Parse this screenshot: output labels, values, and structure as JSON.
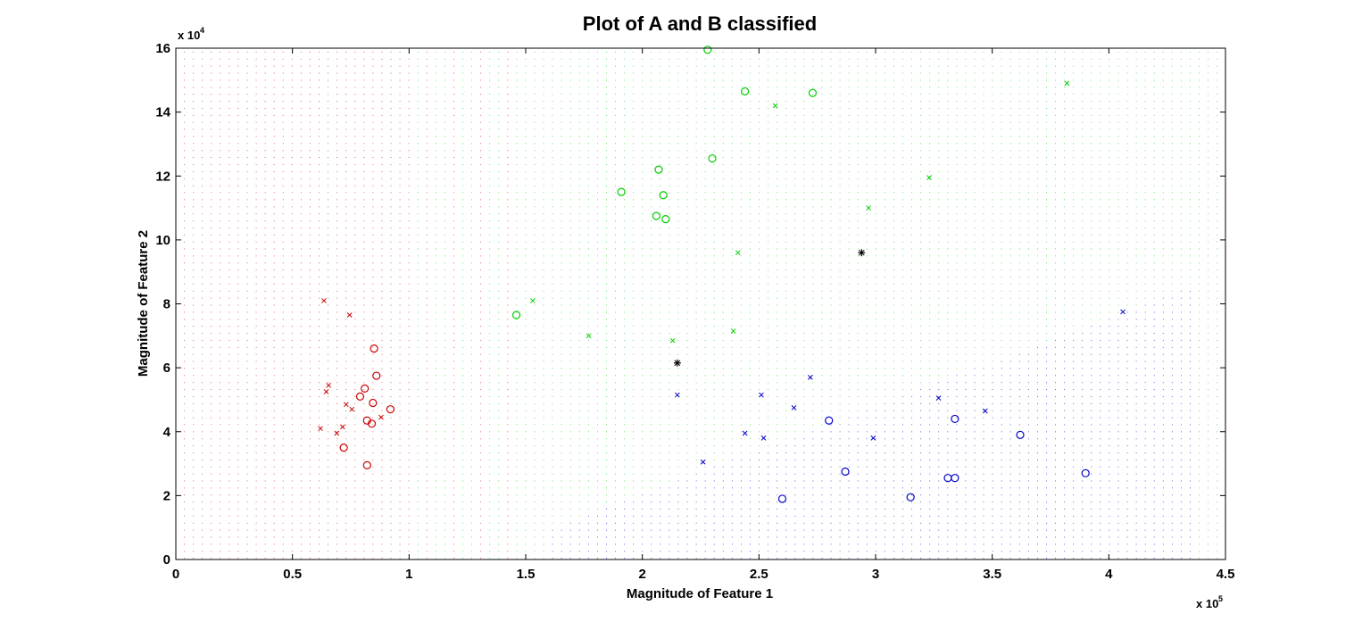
{
  "chart_data": {
    "type": "scatter",
    "title": "Plot of A and B classified",
    "xlabel": "Magnitude of Feature 1",
    "ylabel": "Magnitude of Feature 2",
    "x_exponent_label": "x 10",
    "x_exponent_power": "5",
    "y_exponent_label": "x 10",
    "y_exponent_power": "4",
    "xlim": [
      0,
      4.5
    ],
    "ylim": [
      0,
      16
    ],
    "xticks": [
      0,
      0.5,
      1,
      1.5,
      2,
      2.5,
      3,
      3.5,
      4,
      4.5
    ],
    "xtick_labels": [
      "0",
      "0.5",
      "1",
      "1.5",
      "2",
      "2.5",
      "3",
      "3.5",
      "4",
      "4.5"
    ],
    "yticks": [
      0,
      2,
      4,
      6,
      8,
      10,
      12,
      14,
      16
    ],
    "ytick_labels": [
      "0",
      "2",
      "4",
      "6",
      "8",
      "10",
      "12",
      "14",
      "16"
    ],
    "grid": false,
    "background_regions": [
      {
        "class": "red",
        "color": "#cc0000",
        "x_from": 0.0,
        "x_to": 1.0
      },
      {
        "class": "transition red-green",
        "color": "mixed",
        "x_from": 1.0,
        "x_to": 1.43
      },
      {
        "class": "green",
        "color": "#00cc00",
        "x_from": 1.43,
        "x_to": 4.5,
        "note": "upper part of plot"
      },
      {
        "class": "blue",
        "color": "#0000cc",
        "x_from": 1.85,
        "x_to": 4.35,
        "note": "lower-right part of plot"
      }
    ],
    "series": [
      {
        "color": "#cc0000",
        "marker": "o",
        "points": [
          [
            0.72,
            3.5
          ],
          [
            0.79,
            5.1
          ],
          [
            0.81,
            5.35
          ],
          [
            0.82,
            2.95
          ],
          [
            0.82,
            4.35
          ],
          [
            0.84,
            4.25
          ],
          [
            0.845,
            4.9
          ],
          [
            0.85,
            6.6
          ],
          [
            0.86,
            5.75
          ],
          [
            0.92,
            4.7
          ]
        ]
      },
      {
        "color": "#cc0000",
        "marker": "x",
        "points": [
          [
            0.62,
            4.1
          ],
          [
            0.635,
            8.1
          ],
          [
            0.645,
            5.25
          ],
          [
            0.655,
            5.45
          ],
          [
            0.69,
            3.95
          ],
          [
            0.715,
            4.15
          ],
          [
            0.73,
            4.85
          ],
          [
            0.745,
            7.65
          ],
          [
            0.755,
            4.7
          ],
          [
            0.88,
            4.45
          ]
        ]
      },
      {
        "color": "#00cc00",
        "marker": "o",
        "points": [
          [
            1.46,
            7.65
          ],
          [
            1.91,
            11.5
          ],
          [
            2.06,
            10.75
          ],
          [
            2.07,
            12.2
          ],
          [
            2.09,
            11.4
          ],
          [
            2.1,
            10.65
          ],
          [
            2.28,
            15.95
          ],
          [
            2.3,
            12.55
          ],
          [
            2.44,
            14.65
          ],
          [
            2.73,
            14.6
          ]
        ]
      },
      {
        "color": "#00cc00",
        "marker": "x",
        "points": [
          [
            1.53,
            8.1
          ],
          [
            1.77,
            7.0
          ],
          [
            2.13,
            6.85
          ],
          [
            2.39,
            7.15
          ],
          [
            2.41,
            9.6
          ],
          [
            2.57,
            14.2
          ],
          [
            2.97,
            11.0
          ],
          [
            3.23,
            11.95
          ],
          [
            3.82,
            14.9
          ]
        ]
      },
      {
        "color": "#0000cc",
        "marker": "o",
        "points": [
          [
            2.6,
            1.9
          ],
          [
            2.8,
            4.35
          ],
          [
            2.87,
            2.75
          ],
          [
            3.15,
            1.95
          ],
          [
            3.31,
            2.55
          ],
          [
            3.34,
            2.55
          ],
          [
            3.34,
            4.4
          ],
          [
            3.62,
            3.9
          ],
          [
            3.9,
            2.7
          ]
        ]
      },
      {
        "color": "#0000cc",
        "marker": "x",
        "points": [
          [
            2.15,
            5.15
          ],
          [
            2.26,
            3.05
          ],
          [
            2.44,
            3.95
          ],
          [
            2.51,
            5.15
          ],
          [
            2.52,
            3.8
          ],
          [
            2.65,
            4.75
          ],
          [
            2.72,
            5.7
          ],
          [
            2.99,
            3.8
          ],
          [
            3.27,
            5.05
          ],
          [
            3.47,
            4.65
          ],
          [
            4.06,
            7.75
          ]
        ]
      },
      {
        "color": "#000000",
        "marker": "*",
        "points": [
          [
            2.15,
            6.15
          ],
          [
            2.94,
            9.6
          ]
        ]
      }
    ]
  }
}
